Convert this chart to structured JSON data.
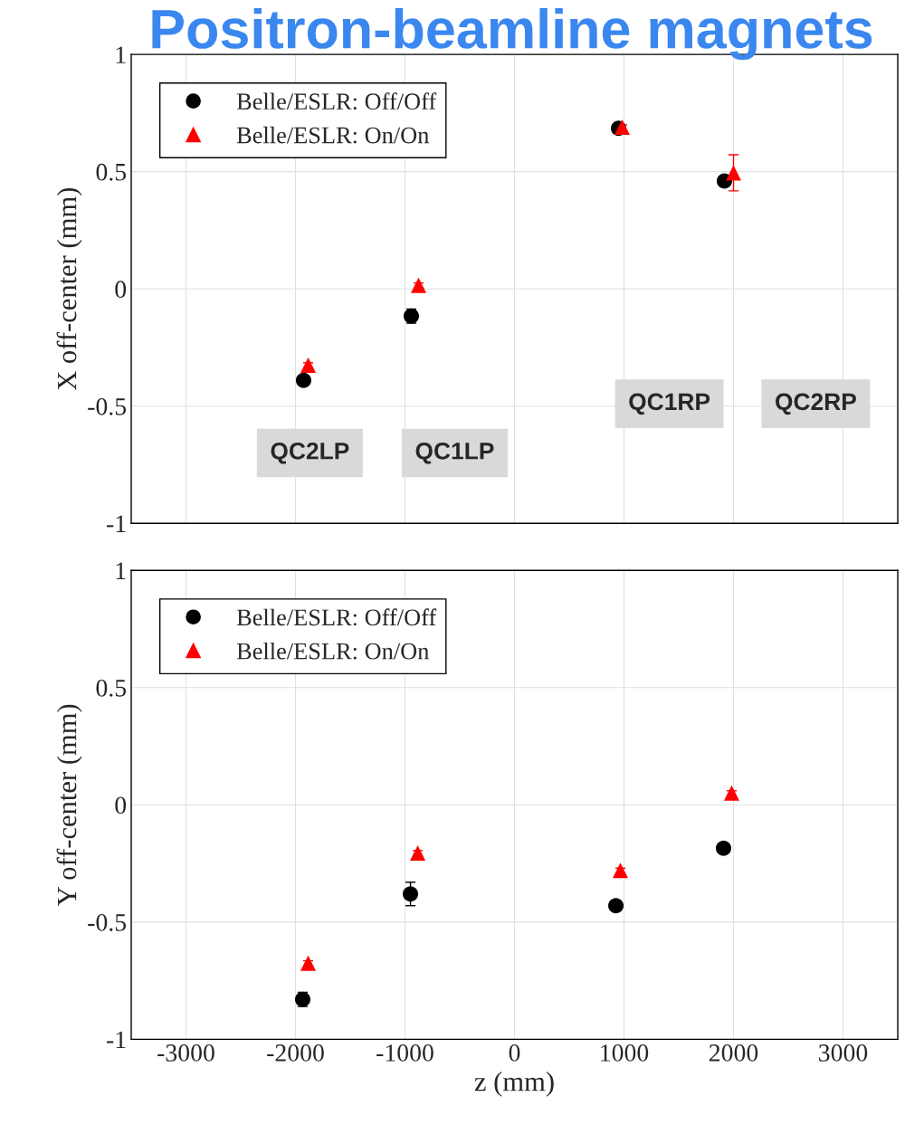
{
  "chart_data": [
    {
      "type": "scatter",
      "title": "Positron-beamline magnets",
      "ylabel": "X off-center (mm)",
      "xlim": [
        -3500,
        3500
      ],
      "xticks": [
        -3000,
        -2000,
        -1000,
        0,
        1000,
        2000,
        3000
      ],
      "ylim": [
        -1,
        1
      ],
      "yticks": [
        -1,
        -0.5,
        0,
        0.5,
        1
      ],
      "grid": true,
      "legend": "top left",
      "tick_labels": "y",
      "series": [
        {
          "name": "Belle/ESLR: Off/Off",
          "color": "#000000",
          "marker": "circle",
          "x": [
            -1926,
            -942,
            950,
            1917
          ],
          "values": [
            -0.39,
            -0.116,
            0.685,
            0.46
          ],
          "errors": [
            0.01,
            0.03,
            0.01,
            0.01
          ]
        },
        {
          "name": "Belle/ESLR: On/On",
          "color": "#ff0000",
          "marker": "triangle",
          "x": [
            -1884,
            -876,
            983,
            2000
          ],
          "values": [
            -0.325,
            0.015,
            0.69,
            0.495
          ],
          "errors": [
            0.01,
            0.01,
            0.01,
            0.077
          ]
        }
      ],
      "annotations": [
        "QC2LP",
        "QC1LP",
        "QC1RP",
        "QC2RP"
      ]
    },
    {
      "type": "scatter",
      "xlabel": "z (mm)",
      "ylabel": "Y off-center (mm)",
      "xlim": [
        -3500,
        3500
      ],
      "xticks": [
        -3000,
        -2000,
        -1000,
        0,
        1000,
        2000,
        3000
      ],
      "ylim": [
        -1,
        1
      ],
      "yticks": [
        -1,
        -0.5,
        0,
        0.5,
        1
      ],
      "grid": true,
      "legend": "top left",
      "series": [
        {
          "name": "Belle/ESLR: Off/Off",
          "color": "#000000",
          "marker": "circle",
          "x": [
            -1934,
            -950,
            926,
            1909
          ],
          "values": [
            -0.83,
            -0.38,
            -0.43,
            -0.185
          ],
          "errors": [
            0.03,
            0.05,
            0.01,
            0.01
          ]
        },
        {
          "name": "Belle/ESLR: On/On",
          "color": "#ff0000",
          "marker": "triangle",
          "x": [
            -1884,
            -884,
            967,
            1983
          ],
          "values": [
            -0.675,
            -0.205,
            -0.28,
            0.05
          ],
          "errors": [
            0.01,
            0.01,
            0.01,
            0.01
          ]
        }
      ]
    }
  ]
}
